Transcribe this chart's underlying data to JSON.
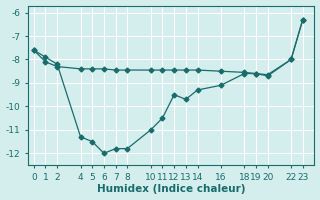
{
  "background_color": "#d4eeee",
  "grid_color": "#b8d8d8",
  "line_color": "#1a6b6b",
  "line1_x": [
    0,
    1,
    2,
    4,
    5,
    6,
    7,
    8,
    10,
    11,
    12,
    13,
    14,
    16,
    18,
    19,
    20,
    22,
    23
  ],
  "line1_y": [
    -7.6,
    -7.9,
    -8.2,
    -11.3,
    -11.5,
    -12.0,
    -11.8,
    -11.8,
    -11.0,
    -10.5,
    -9.5,
    -9.7,
    -9.3,
    -9.1,
    -8.6,
    -8.6,
    -8.7,
    -8.0,
    -6.3
  ],
  "line2_x": [
    0,
    1,
    2,
    4,
    5,
    6,
    7,
    8,
    10,
    11,
    12,
    13,
    14,
    16,
    18,
    19,
    20,
    22,
    23
  ],
  "line2_y": [
    -7.6,
    -8.1,
    -8.3,
    -8.4,
    -8.4,
    -8.4,
    -8.45,
    -8.45,
    -8.45,
    -8.45,
    -8.45,
    -8.45,
    -8.45,
    -8.5,
    -8.55,
    -8.6,
    -8.65,
    -8.0,
    -6.3
  ],
  "xlabel": "Humidex (Indice chaleur)",
  "xtick_positions": [
    0,
    1,
    2,
    4,
    5,
    6,
    7,
    8,
    10,
    11,
    12,
    13,
    14,
    16,
    18,
    19,
    20,
    22,
    23
  ],
  "xtick_labels": [
    "0",
    "1",
    "2",
    "4",
    "5",
    "6",
    "7",
    "8",
    "10",
    "11",
    "12",
    "13",
    "14",
    "16",
    "18",
    "19",
    "20",
    "22",
    "23"
  ],
  "ylim": [
    -12.5,
    -5.7
  ],
  "xlim": [
    -0.5,
    24.0
  ],
  "ytick_positions": [
    -12,
    -11,
    -10,
    -9,
    -8,
    -7,
    -6
  ],
  "ytick_labels": [
    "-12",
    "-11",
    "-10",
    "-9",
    "-8",
    "-7",
    "-6"
  ],
  "marker": "D",
  "marker_size": 2.5,
  "linewidth": 0.9,
  "xlabel_fontsize": 7.5,
  "tick_fontsize": 6.5,
  "figsize": [
    3.2,
    2.0
  ],
  "dpi": 100
}
